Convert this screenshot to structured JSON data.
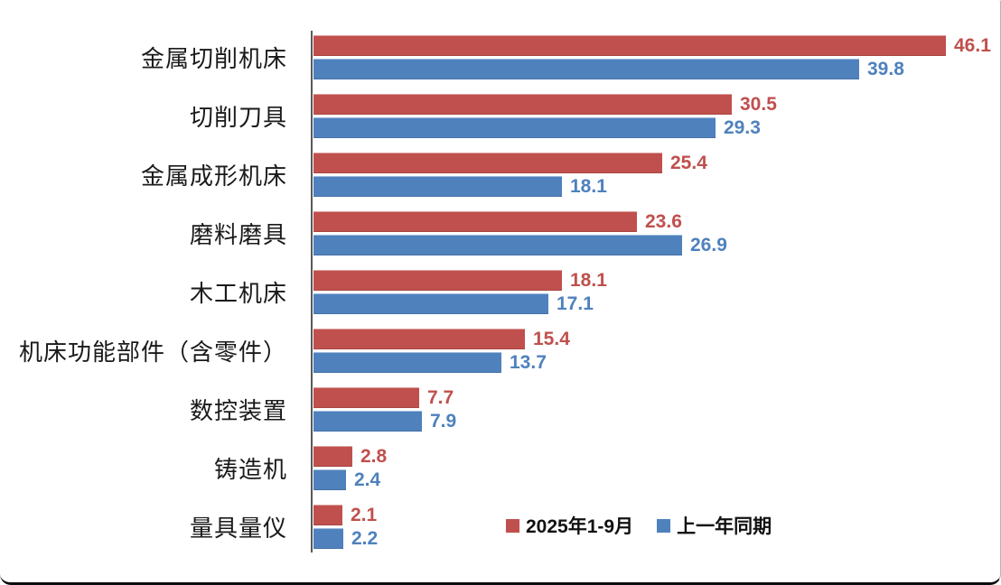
{
  "chart_data": {
    "type": "bar",
    "orientation": "horizontal",
    "title": "",
    "xlabel": "",
    "ylabel": "",
    "grid": false,
    "value_labels": true,
    "legend_position": "bottom-center",
    "xlim": [
      0,
      48
    ],
    "categories": [
      "金属切削机床",
      "切削刀具",
      "金属成形机床",
      "磨料磨具",
      "木工机床",
      "机床功能部件（含零件）",
      "数控装置",
      "铸造机",
      "量具量仪"
    ],
    "series": [
      {
        "name": "2025年1-9月",
        "color": "#C0504D",
        "values": [
          46.1,
          30.5,
          25.4,
          23.6,
          18.1,
          15.4,
          7.7,
          2.8,
          2.1
        ]
      },
      {
        "name": "上一年同期",
        "color": "#4F81BD",
        "values": [
          39.8,
          29.3,
          18.1,
          26.9,
          17.1,
          13.7,
          7.9,
          2.4,
          2.2
        ]
      }
    ],
    "axis_line_color": "#595959"
  }
}
